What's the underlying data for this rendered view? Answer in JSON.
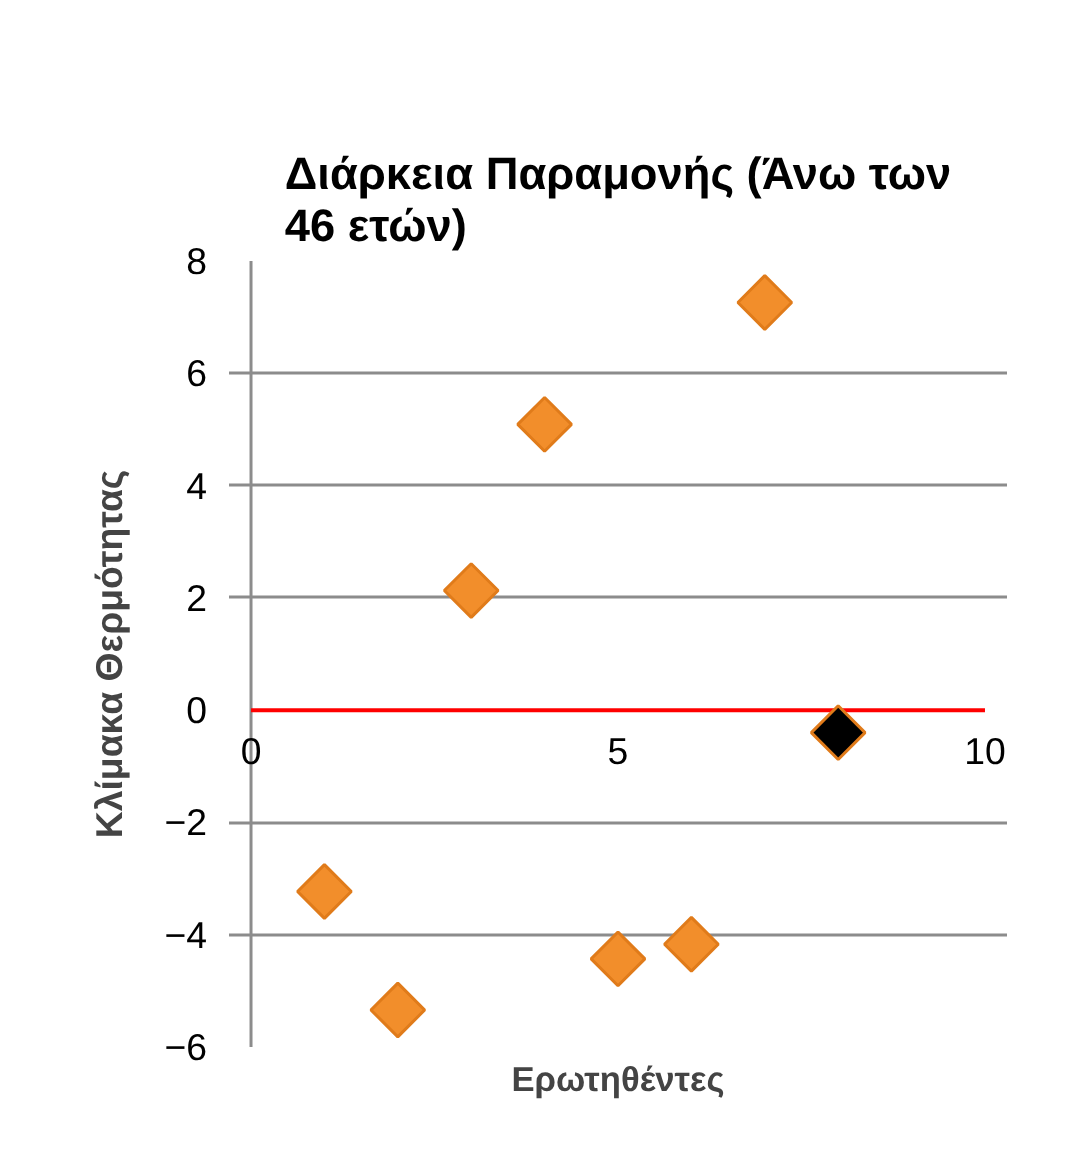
{
  "chart_data": {
    "type": "scatter",
    "title": "Διάρκεια Παραμονής (Άνω των 46 ετών)",
    "xlabel": "Ερωτηθέντες",
    "ylabel": "Κλίμακα Θερμότητας",
    "x": [
      1,
      2,
      3,
      4,
      5,
      6,
      7,
      8
    ],
    "values": [
      -3.23,
      -5.34,
      2.13,
      5.09,
      -4.43,
      -4.17,
      7.26,
      -0.4
    ],
    "colors": [
      "#f28e2b",
      "#f28e2b",
      "#f28e2b",
      "#f28e2b",
      "#f28e2b",
      "#f28e2b",
      "#f28e2b",
      "#000000"
    ],
    "marker": "diamond",
    "xlim": [
      0,
      10
    ],
    "xticks": [
      0,
      5,
      10
    ],
    "ylim": [
      -6,
      8
    ],
    "yticks": [
      -6,
      -4,
      -2,
      0,
      2,
      4,
      6,
      8
    ],
    "grid": "y"
  }
}
